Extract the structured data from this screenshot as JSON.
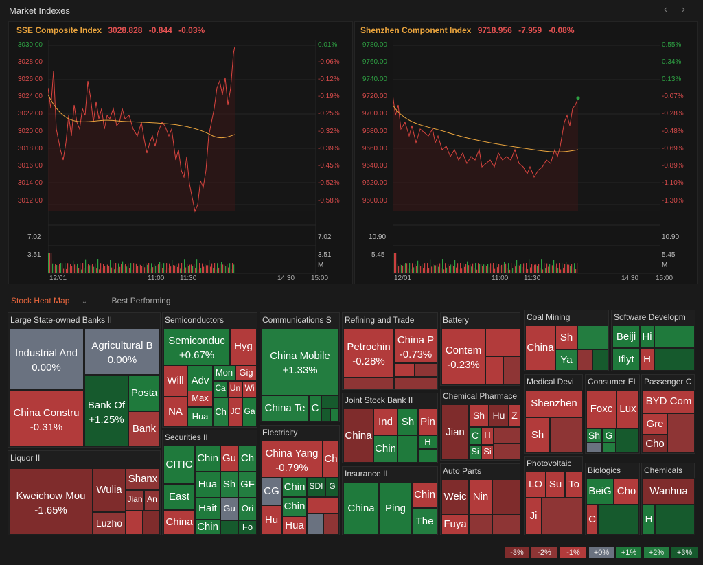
{
  "app": {
    "title": "Market Indexes",
    "nav": "‹ ›"
  },
  "sse": {
    "name": "SSE Composite Index",
    "price": "3028.828",
    "change": "-0.844",
    "pct": "-0.03%",
    "left_axis": [
      "3030.00",
      "3028.00",
      "3026.00",
      "3024.00",
      "3022.00",
      "3020.00",
      "3018.00",
      "3016.00",
      "3014.00",
      "3012.00"
    ],
    "right_axis": [
      "0.01%",
      "-0.06%",
      "-0.12%",
      "-0.19%",
      "-0.25%",
      "-0.32%",
      "-0.39%",
      "-0.45%",
      "-0.52%",
      "-0.58%"
    ],
    "vol_top": "7.02",
    "vol_mid": "3.51",
    "vol_unit": "M",
    "times": [
      "12/01",
      "11:00",
      "11:30",
      "14:30",
      "15:00"
    ]
  },
  "szc": {
    "name": "Shenzhen Component Index",
    "price": "9718.956",
    "change": "-7.959",
    "pct": "-0.08%",
    "left_axis": [
      "9780.00",
      "9760.00",
      "9740.00",
      "9720.00",
      "9700.00",
      "9680.00",
      "9660.00",
      "9640.00",
      "9620.00",
      "9600.00"
    ],
    "right_axis": [
      "0.55%",
      "0.34%",
      "0.13%",
      "-0.07%",
      "-0.28%",
      "-0.48%",
      "-0.69%",
      "-0.89%",
      "-1.10%",
      "-1.30%"
    ],
    "vol_top": "10.90",
    "vol_mid": "5.45",
    "vol_unit": "M",
    "times": [
      "12/01",
      "11:00",
      "11:30",
      "14:30",
      "15:00"
    ]
  },
  "tabs": {
    "heat_map": "Stock Heat Map",
    "best": "Best Performing"
  },
  "heat": {
    "banks": {
      "title": "Large State-owned Banks II",
      "t1": "Industrial And",
      "p1": "0.00%",
      "t2": "Agricultural B",
      "p2": "0.00%",
      "t3": "China Constru",
      "p3": "-0.31%",
      "t4": "Bank Of",
      "p4": "+1.25%",
      "t5": "Posta",
      "t6": "Bank"
    },
    "liquor": {
      "title": "Liquor II",
      "t1": "Kweichow Mou",
      "p1": "-1.65%",
      "t2": "Wulia",
      "t3": "Luzho",
      "t4": "Shanx",
      "t5": "Jian",
      "t6": "An"
    },
    "semi": {
      "title": "Semiconductors",
      "t1": "Semiconduc",
      "p1": "+0.67%",
      "t2": "Hyg",
      "t3": "Will",
      "t4": "Adv",
      "t5": "Mon",
      "t6": "Gig",
      "t7": "Max",
      "t8": "Ca",
      "t9": "Un",
      "t10": "Wi",
      "t11": "NA",
      "t12": "Hua",
      "t13": "Ch",
      "t14": "JC",
      "t15": "Ga"
    },
    "secu": {
      "title": "Securities II",
      "t1": "CITIC",
      "t2": "Chin",
      "t3": "Gu",
      "t4": "Ch",
      "t5": "Hua",
      "t6": "Sh",
      "t7": "GF",
      "t8": "East",
      "t9": "Hait",
      "t10": "Gu",
      "t11": "Ori",
      "t12": "China",
      "t13": "Chin",
      "t14": "Fo"
    },
    "comm": {
      "title": "Communications S",
      "t1": "China Mobile",
      "p1": "+1.33%",
      "t2": "China Te",
      "t3": "C"
    },
    "elec": {
      "title": "Electricity",
      "t1": "China Yang",
      "p1": "-0.79%",
      "t2": "Ch",
      "t3": "CG",
      "t4": "Chin",
      "t5": "SDI",
      "t6": "G",
      "t7": "Chin",
      "t8": "Hu",
      "t9": "Hua"
    },
    "refin": {
      "title": "Refining and Trade",
      "t1": "Petrochin",
      "p1": "-0.28%",
      "t2": "China P",
      "p2": "-0.73%"
    },
    "jsb": {
      "title": "Joint Stock Bank II",
      "t1": "China",
      "t2": "Ind",
      "t3": "Sh",
      "t4": "Pin",
      "t5": "Chin",
      "t6": "H"
    },
    "ins": {
      "title": "Insurance II",
      "t1": "China",
      "t2": "Ping",
      "t3": "Chin",
      "t4": "The"
    },
    "batt": {
      "title": "Battery",
      "t1": "Contem",
      "p1": "-0.23%"
    },
    "chem": {
      "title": "Chemical Pharmace",
      "t1": "Jian",
      "t2": "Sh",
      "t3": "Hu",
      "t4": "Z",
      "t5": "C",
      "t6": "H",
      "t7": "Si",
      "t8": "Si"
    },
    "auto": {
      "title": "Auto Parts",
      "t1": "Weic",
      "t2": "Nin",
      "t3": "Fuya"
    },
    "coal": {
      "title": "Coal Mining",
      "t1": "China",
      "t2": "Sh",
      "t3": "Ya"
    },
    "soft": {
      "title": "Software Developm",
      "t1": "Beiji",
      "t2": "Hi",
      "t3": "Iflyt",
      "t4": "H"
    },
    "med": {
      "title": "Medical Devi",
      "t1": "Shenzhen",
      "t2": "Sh"
    },
    "cons": {
      "title": "Consumer El",
      "t1": "Foxc",
      "t2": "Lux",
      "t3": "Sh",
      "t4": "G"
    },
    "pass": {
      "title": "Passenger C",
      "t1": "BYD Com",
      "t2": "Gre",
      "t3": "Cho"
    },
    "photo": {
      "title": "Photovoltaic",
      "t1": "LO",
      "t2": "Su",
      "t3": "To",
      "t4": "Ji"
    },
    "bio": {
      "title": "Biologics",
      "t1": "BeiG",
      "t2": "Cho",
      "t3": "C"
    },
    "chems": {
      "title": "Chemicals",
      "t1": "Wanhua",
      "t2": "H"
    }
  },
  "legend": [
    "-3%",
    "-2%",
    "-1%",
    "+0%",
    "+1%",
    "+2%",
    "+3%"
  ],
  "colors": {
    "up": "#2ea043",
    "down": "#e25151",
    "accent": "#e8663d",
    "avg": "#e8a33d"
  }
}
